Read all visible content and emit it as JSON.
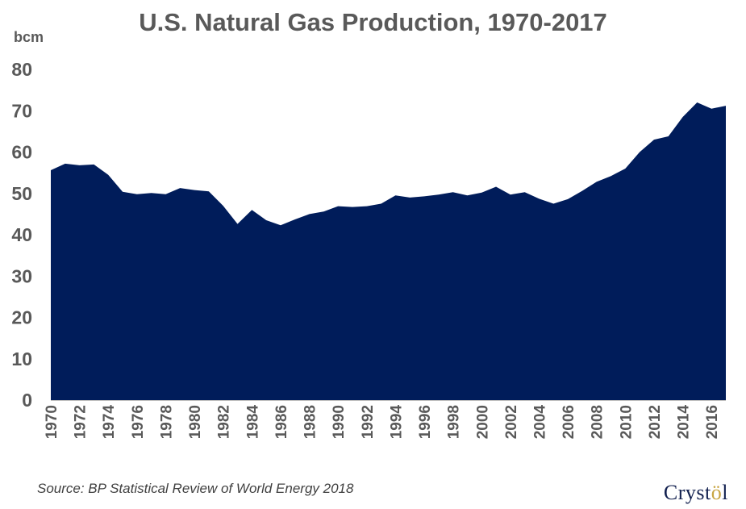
{
  "chart_data": {
    "type": "area",
    "title": "U.S. Natural Gas Production, 1970-2017",
    "ylabel": "bcm",
    "xlabel": "",
    "ylim": [
      0,
      80
    ],
    "yticks": [
      0,
      10,
      20,
      30,
      40,
      50,
      60,
      70,
      80
    ],
    "xtick_labels": [
      "1970",
      "1972",
      "1974",
      "1976",
      "1978",
      "1980",
      "1982",
      "1984",
      "1986",
      "1988",
      "1990",
      "1992",
      "1994",
      "1996",
      "1998",
      "2000",
      "2002",
      "2004",
      "2006",
      "2008",
      "2010",
      "2012",
      "2014",
      "2016"
    ],
    "grid": false,
    "fill_color": "#001C5A",
    "x": [
      1970,
      1971,
      1972,
      1973,
      1974,
      1975,
      1976,
      1977,
      1978,
      1979,
      1980,
      1981,
      1982,
      1983,
      1984,
      1985,
      1986,
      1987,
      1988,
      1989,
      1990,
      1991,
      1992,
      1993,
      1994,
      1995,
      1996,
      1997,
      1998,
      1999,
      2000,
      2001,
      2002,
      2003,
      2004,
      2005,
      2006,
      2007,
      2008,
      2009,
      2010,
      2011,
      2012,
      2013,
      2014,
      2015,
      2016,
      2017
    ],
    "values": [
      55.6,
      57.2,
      56.8,
      57.0,
      54.5,
      50.4,
      49.8,
      50.1,
      49.8,
      51.3,
      50.8,
      50.5,
      47.0,
      42.6,
      46.0,
      43.5,
      42.3,
      43.7,
      45.0,
      45.6,
      46.9,
      46.7,
      46.9,
      47.5,
      49.5,
      49.0,
      49.3,
      49.7,
      50.3,
      49.5,
      50.2,
      51.6,
      49.7,
      50.3,
      48.7,
      47.5,
      48.6,
      50.6,
      52.8,
      54.2,
      56.0,
      60.0,
      63.0,
      63.8,
      68.5,
      72.0,
      70.5,
      71.2
    ]
  },
  "source": "Source: BP Statistical Review of World Energy 2018",
  "logo": {
    "text_before": "Cryst",
    "text_mark": "ö",
    "text_after": "l"
  },
  "colors": {
    "axis_text": "#595959",
    "fill": "#001C5A"
  }
}
